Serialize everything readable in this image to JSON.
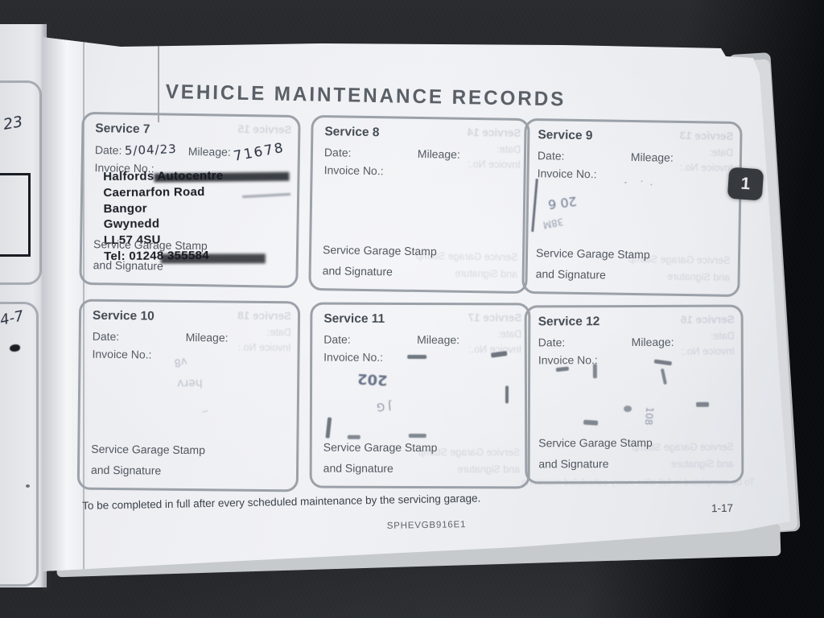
{
  "page": {
    "title": "VEHICLE MAINTENANCE RECORDS",
    "tab_label": "1",
    "labels": {
      "date": "Date:",
      "mileage": "Mileage:",
      "invoice": "Invoice No.:",
      "stamp_line1": "Service Garage Stamp",
      "stamp_line2": "and Signature"
    },
    "services": [
      {
        "title": "Service 7",
        "date_value": "5/04/23",
        "mileage_value": "71678",
        "bleed_title": "Service 15",
        "stamp_lines": [
          "Halfords Autocentre",
          "Caernarfon Road",
          "Bangor",
          "Gwynedd",
          "LL57 4SU",
          "Tel: 01248 355584"
        ]
      },
      {
        "title": "Service 8",
        "bleed_title": "Service 14"
      },
      {
        "title": "Service 9",
        "bleed_title": "Service 13",
        "ink_text": "20 6",
        "ink_text2": "38M"
      },
      {
        "title": "Service 10",
        "bleed_title": "Service 18",
        "ink_text": "v8",
        "ink_text2": "herv"
      },
      {
        "title": "Service 11",
        "bleed_title": "Service 17",
        "ink_text": "202",
        "ink_text2": "J G"
      },
      {
        "title": "Service 12",
        "bleed_title": "Service 16",
        "ink_text": "108"
      }
    ],
    "footer_note": "To be completed in full after every scheduled maintenance by the servicing garage.",
    "doc_code": "SPHEVGB916E1",
    "page_number": "1-17",
    "left_page": {
      "scribble_top": "23",
      "scribble_bottom": "4-7"
    }
  },
  "colors": {
    "paper": "#f0f1f4",
    "box_border": "#9ba1a8",
    "print_text": "#565c64",
    "handwriting_ink": "#2b3140",
    "stamp_ink": "#181c23",
    "tab_bg": "#36393e",
    "backdrop": "#232529"
  }
}
